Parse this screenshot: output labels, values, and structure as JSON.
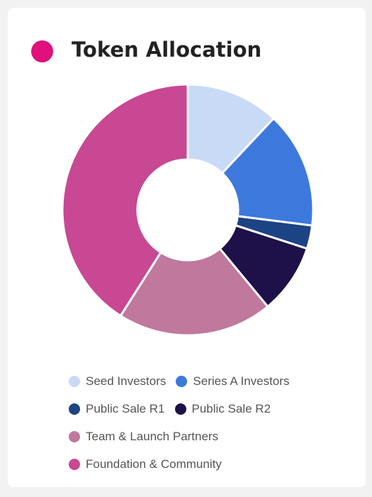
{
  "card": {
    "title": "Token Allocation",
    "title_dot_color": "#e0107c"
  },
  "chart_data": {
    "type": "pie",
    "style": "donut",
    "title": "Token Allocation",
    "legend_position": "bottom",
    "labels": [
      "Seed Investors",
      "Series A Investors",
      "Public Sale R1",
      "Public Sale R2",
      "Team & Launch Partners",
      "Foundation & Community"
    ],
    "values": [
      12,
      15,
      3,
      9,
      20,
      41
    ],
    "colors": [
      "#c8daf6",
      "#3d79dc",
      "#1c4384",
      "#1e1048",
      "#c0789d",
      "#c84893"
    ]
  },
  "legend": {
    "rows": [
      [
        {
          "label": "Seed Investors",
          "color": "#c8daf6"
        },
        {
          "label": "Series A Investors",
          "color": "#3d79dc"
        }
      ],
      [
        {
          "label": "Public Sale R1",
          "color": "#1c4384"
        },
        {
          "label": "Public Sale R2",
          "color": "#1e1048"
        }
      ],
      [
        {
          "label": "Team & Launch Partners",
          "color": "#c0789d"
        }
      ],
      [
        {
          "label": "Foundation & Community",
          "color": "#c84893"
        }
      ]
    ]
  }
}
